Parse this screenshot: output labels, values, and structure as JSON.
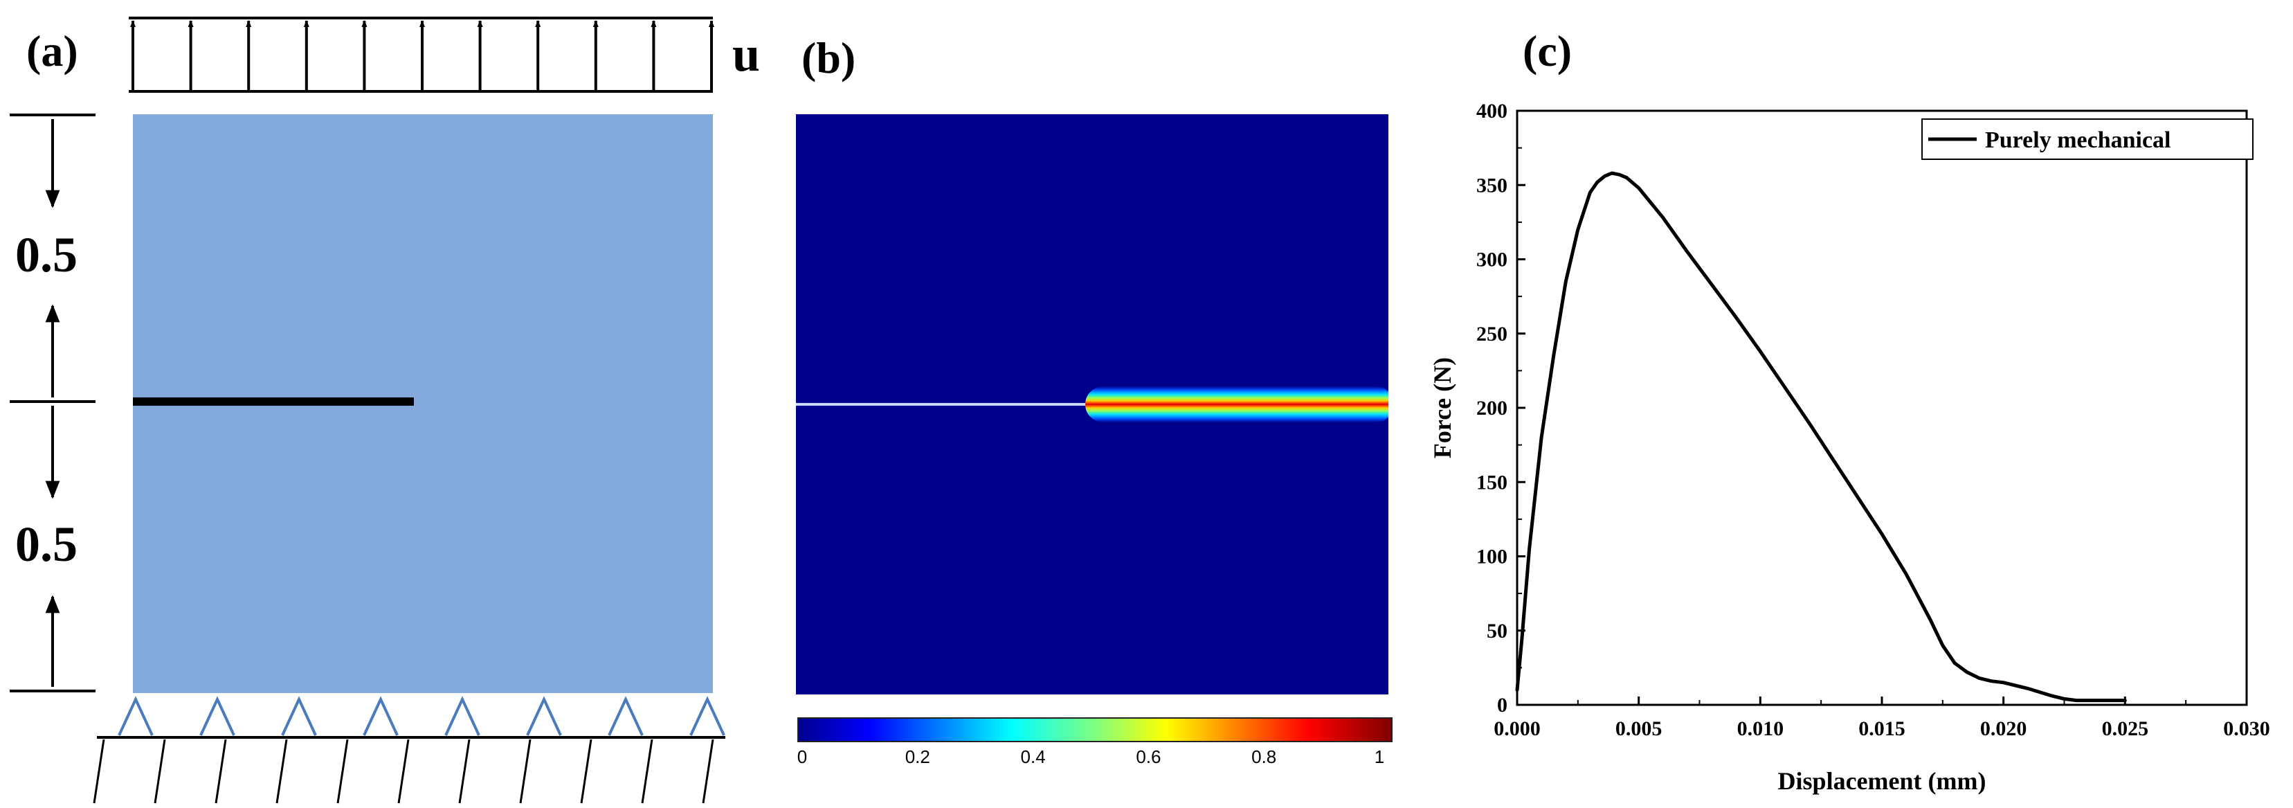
{
  "panels": {
    "a": {
      "label": "(a)",
      "load_label": "u",
      "dim_top": "0.5",
      "dim_bottom": "0.5"
    },
    "b": {
      "label": "(b)",
      "colorbar_ticks": [
        "0",
        "0.2",
        "0.4",
        "0.6",
        "0.8",
        "1"
      ]
    },
    "c": {
      "label": "(c)"
    }
  },
  "colors": {
    "plate": "#84aadb",
    "field_background": "#00008b",
    "support": "#4a7bbf"
  },
  "chart_data": {
    "type": "line",
    "title": "",
    "xlabel": "Displacement (mm)",
    "ylabel": "Force (N)",
    "xlim": [
      0,
      0.03
    ],
    "ylim": [
      0,
      400
    ],
    "xticks": [
      0,
      0.005,
      0.01,
      0.015,
      0.02,
      0.025,
      0.03
    ],
    "xtick_labels": [
      "0.000",
      "0.005",
      "0.010",
      "0.015",
      "0.020",
      "0.025",
      "0.030"
    ],
    "yticks": [
      0,
      50,
      100,
      150,
      200,
      250,
      300,
      350,
      400
    ],
    "ytick_labels": [
      "0",
      "50",
      "100",
      "150",
      "200",
      "250",
      "300",
      "350",
      "400"
    ],
    "legend_position": "top-right",
    "series": [
      {
        "name": "Purely mechanical",
        "color": "#000000",
        "x": [
          0,
          0.0002,
          0.0005,
          0.001,
          0.0015,
          0.002,
          0.0025,
          0.003,
          0.0033,
          0.0036,
          0.0039,
          0.0042,
          0.0045,
          0.005,
          0.006,
          0.007,
          0.008,
          0.009,
          0.01,
          0.011,
          0.012,
          0.013,
          0.014,
          0.015,
          0.016,
          0.017,
          0.0175,
          0.018,
          0.0185,
          0.019,
          0.0195,
          0.02,
          0.021,
          0.022,
          0.0225,
          0.023,
          0.024,
          0.025
        ],
        "y": [
          10,
          45,
          105,
          180,
          235,
          285,
          320,
          345,
          352,
          356,
          358,
          357,
          355,
          348,
          328,
          305,
          283,
          261,
          238,
          214,
          190,
          165,
          140,
          115,
          88,
          57,
          40,
          28,
          22,
          18,
          16,
          15,
          11,
          6,
          4,
          3,
          3,
          3
        ]
      }
    ]
  }
}
